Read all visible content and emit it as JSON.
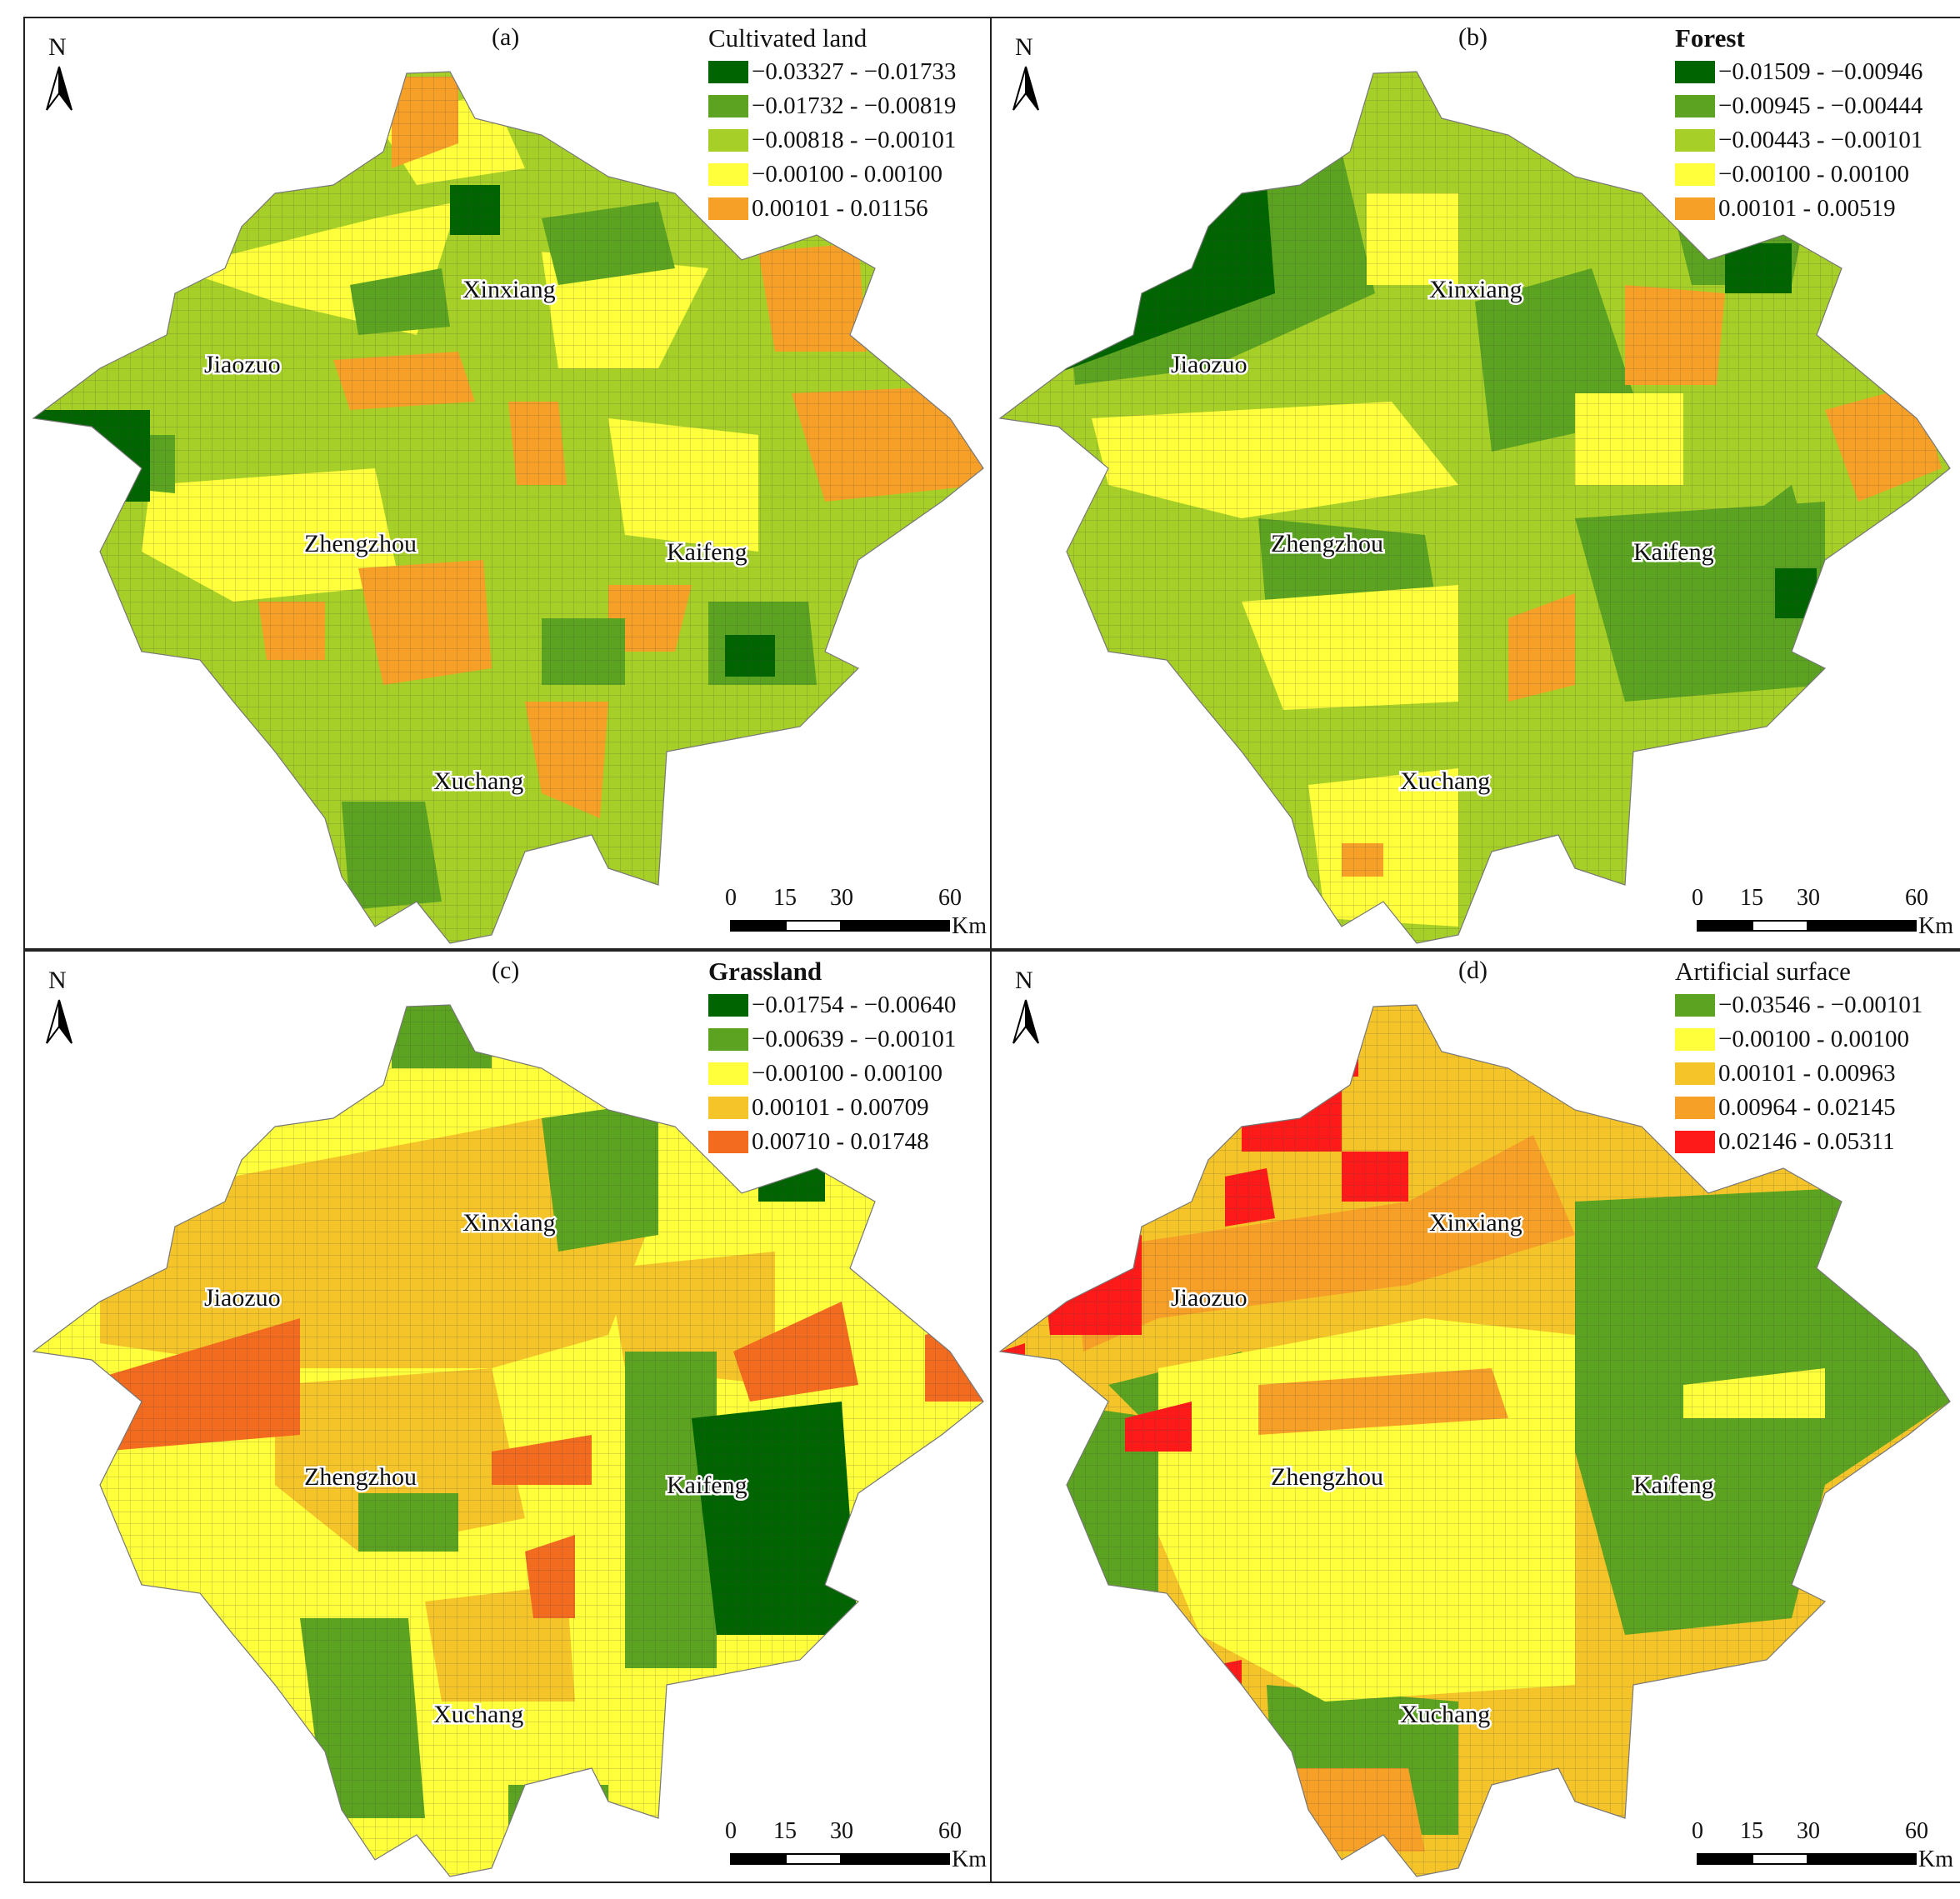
{
  "panels": [
    {
      "id": "a",
      "letter": "(a)",
      "title": "Cultivated land",
      "title_bold": false,
      "legend": [
        {
          "label": "−0.03327 - −0.01733",
          "color": "#006400"
        },
        {
          "label": "−0.01732 - −0.00819",
          "color": "#5ba320"
        },
        {
          "label": "−0.00818 - −0.00101",
          "color": "#a6cf27"
        },
        {
          "label": "−0.00100 - 0.00100",
          "color": "#ffff3c"
        },
        {
          "label": "0.00101 - 0.01156",
          "color": "#f7a028"
        }
      ]
    },
    {
      "id": "b",
      "letter": "(b)",
      "title": "Forest",
      "title_bold": true,
      "legend": [
        {
          "label": "−0.01509 - −0.00946",
          "color": "#006400"
        },
        {
          "label": "−0.00945 - −0.00444",
          "color": "#5ba320"
        },
        {
          "label": "−0.00443 - −0.00101",
          "color": "#a6cf27"
        },
        {
          "label": "−0.00100 - 0.00100",
          "color": "#ffff3c"
        },
        {
          "label": "0.00101 - 0.00519",
          "color": "#f7a028"
        }
      ]
    },
    {
      "id": "c",
      "letter": "(c)",
      "title": "Grassland",
      "title_bold": true,
      "legend": [
        {
          "label": "−0.01754 - −0.00640",
          "color": "#006400"
        },
        {
          "label": "−0.00639 - −0.00101",
          "color": "#5ba320"
        },
        {
          "label": "−0.00100 - 0.00100",
          "color": "#ffff3c"
        },
        {
          "label": "0.00101 - 0.00709",
          "color": "#f5c428"
        },
        {
          "label": "0.00710 - 0.01748",
          "color": "#f26b1f"
        }
      ]
    },
    {
      "id": "d",
      "letter": "(d)",
      "title": "Artificial surface",
      "title_bold": false,
      "legend": [
        {
          "label": "−0.03546 - −0.00101",
          "color": "#5ba320"
        },
        {
          "label": "−0.00100 - 0.00100",
          "color": "#ffff3c"
        },
        {
          "label": "0.00101 - 0.00963",
          "color": "#f5c428"
        },
        {
          "label": "0.00964 - 0.02145",
          "color": "#f7a028"
        },
        {
          "label": "0.02146 - 0.05311",
          "color": "#ff1a1a"
        }
      ]
    }
  ],
  "cities": [
    "Xinxiang",
    "Jiaozuo",
    "Zhengzhou",
    "Kaifeng",
    "Xuchang"
  ],
  "north_label": "N",
  "scale": {
    "ticks": [
      "0",
      "15",
      "30",
      "60"
    ],
    "unit": "Km"
  }
}
